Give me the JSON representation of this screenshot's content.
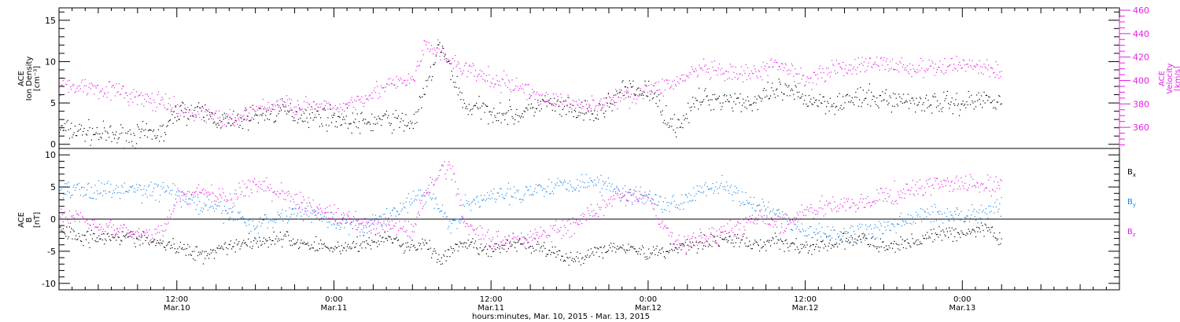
{
  "colors": {
    "axis": "#000000",
    "density": "#000000",
    "velocity": "#e61ee6",
    "bx": "#000000",
    "by": "#1e88e5",
    "bz": "#e61ee6"
  },
  "x_axis": {
    "label": "hours:minutes, Mar. 10, 2015 - Mar. 13, 2015",
    "ticks": [
      {
        "time": "12:00",
        "date": "Mar.10",
        "hours": 12
      },
      {
        "time": "0:00",
        "date": "Mar.11",
        "hours": 24
      },
      {
        "time": "12:00",
        "date": "Mar.11",
        "hours": 36
      },
      {
        "time": "0:00",
        "date": "Mar.12",
        "hours": 48
      },
      {
        "time": "12:00",
        "date": "Mar.12",
        "hours": 60
      },
      {
        "time": "0:00",
        "date": "Mar.13",
        "hours": 72
      }
    ]
  },
  "panel_top": {
    "ylabel_left": [
      "ACE",
      "Ion Density",
      "[cm⁻³]"
    ],
    "ylabel_right": [
      "ACE",
      "Velocity",
      "[km/s]"
    ],
    "left_ticks": [
      "0",
      "5",
      "10",
      "15"
    ],
    "right_ticks": [
      "360",
      "380",
      "400",
      "420",
      "440",
      "460"
    ]
  },
  "panel_bottom": {
    "ylabel_left": [
      "ACE",
      "B",
      "[nT]"
    ],
    "ticks": [
      "-10",
      "-5",
      "0",
      "5",
      "10"
    ],
    "legend": [
      {
        "text": "B",
        "sub": "x",
        "key": "bx"
      },
      {
        "text": "B",
        "sub": "y",
        "key": "by"
      },
      {
        "text": "B",
        "sub": "z",
        "key": "bz"
      }
    ]
  },
  "chart_data": [
    {
      "type": "scatter",
      "title": "",
      "xlabel": "hours:minutes, Mar. 10, 2015 - Mar. 13, 2015",
      "xlim_hours": [
        3.0,
        84.0
      ],
      "ylim_left": [
        -0.5,
        16.5
      ],
      "ylim_right": [
        342,
        462
      ],
      "series": [
        {
          "name": "Ion Density",
          "axis": "left",
          "unit": "cm^-3",
          "x": [
            3,
            5,
            7,
            9,
            11,
            12,
            14,
            16,
            18,
            20,
            22,
            24,
            26,
            28,
            30,
            31,
            32,
            33,
            34,
            36,
            38,
            40,
            42,
            44,
            46,
            48,
            50,
            52,
            54,
            56,
            58,
            60,
            62,
            64,
            66,
            68,
            70,
            72,
            74,
            75
          ],
          "y": [
            1.8,
            1.5,
            1.0,
            1.1,
            1.4,
            4.0,
            3.8,
            2.5,
            3.5,
            4.0,
            3.5,
            3.2,
            2.5,
            3.0,
            2.5,
            6.5,
            12.0,
            8.5,
            4.5,
            4.0,
            3.5,
            5.0,
            4.0,
            3.5,
            6.5,
            6.5,
            2.0,
            5.5,
            5.5,
            5.0,
            6.5,
            5.5,
            5.0,
            5.5,
            5.5,
            5.2,
            5.0,
            5.0,
            5.5,
            5.5
          ]
        },
        {
          "name": "Velocity",
          "axis": "right",
          "unit": "km/s",
          "x": [
            3,
            5,
            7,
            9,
            11,
            12,
            14,
            16,
            18,
            20,
            22,
            24,
            26,
            28,
            30,
            31,
            32,
            33,
            34,
            36,
            38,
            40,
            42,
            44,
            46,
            48,
            50,
            52,
            54,
            56,
            58,
            60,
            62,
            64,
            66,
            68,
            70,
            72,
            74,
            75
          ],
          "y": [
            395,
            395,
            392,
            385,
            380,
            375,
            372,
            365,
            375,
            380,
            378,
            375,
            385,
            395,
            400,
            430,
            425,
            415,
            410,
            400,
            395,
            385,
            380,
            380,
            385,
            392,
            398,
            410,
            405,
            405,
            415,
            400,
            410,
            412,
            415,
            410,
            410,
            415,
            410,
            405
          ]
        }
      ]
    },
    {
      "type": "scatter",
      "title": "",
      "xlabel": "hours:minutes, Mar. 10, 2015 - Mar. 13, 2015",
      "ylabel": "B [nT]",
      "xlim_hours": [
        3.0,
        84.0
      ],
      "ylim": [
        -11,
        11
      ],
      "series": [
        {
          "name": "Bx",
          "x": [
            3,
            5,
            7,
            9,
            11,
            12,
            14,
            16,
            18,
            20,
            22,
            24,
            26,
            28,
            30,
            31,
            32,
            33,
            34,
            36,
            38,
            40,
            42,
            44,
            46,
            48,
            50,
            52,
            54,
            56,
            58,
            60,
            62,
            64,
            66,
            68,
            70,
            72,
            74,
            75
          ],
          "y": [
            -1.5,
            -3.0,
            -2.5,
            -3.0,
            -4.0,
            -4.5,
            -5.5,
            -4.0,
            -3.5,
            -3.0,
            -4.0,
            -4.5,
            -4.0,
            -3.0,
            -4.5,
            -3.5,
            -6.5,
            -5.0,
            -4.0,
            -5.0,
            -3.5,
            -4.5,
            -6.5,
            -5.0,
            -4.0,
            -5.5,
            -4.5,
            -3.5,
            -3.0,
            -4.0,
            -3.5,
            -4.5,
            -4.0,
            -3.0,
            -4.5,
            -3.5,
            -2.5,
            -2.0,
            -1.5,
            -3.5
          ]
        },
        {
          "name": "By",
          "x": [
            3,
            5,
            7,
            9,
            11,
            12,
            14,
            16,
            18,
            20,
            22,
            24,
            26,
            28,
            30,
            31,
            32,
            33,
            34,
            36,
            38,
            40,
            42,
            44,
            46,
            48,
            50,
            52,
            54,
            56,
            58,
            60,
            62,
            64,
            66,
            68,
            70,
            72,
            74,
            75
          ],
          "y": [
            4.5,
            4.5,
            4.5,
            4.5,
            4.5,
            4.0,
            2.0,
            1.0,
            -1.0,
            0.5,
            1.5,
            -0.5,
            -1.5,
            0.5,
            3.0,
            4.0,
            2.0,
            -1.0,
            2.0,
            3.5,
            4.0,
            5.0,
            5.5,
            6.0,
            4.0,
            3.5,
            2.0,
            5.0,
            5.0,
            2.0,
            0.5,
            -2.0,
            -2.5,
            -2.0,
            -1.5,
            0.0,
            1.0,
            0.5,
            1.5,
            2.0
          ]
        },
        {
          "name": "Bz",
          "x": [
            3,
            5,
            7,
            9,
            11,
            12,
            14,
            16,
            18,
            20,
            22,
            24,
            26,
            28,
            30,
            31,
            32,
            33,
            34,
            36,
            38,
            40,
            42,
            44,
            46,
            48,
            50,
            52,
            54,
            56,
            58,
            60,
            62,
            64,
            66,
            68,
            70,
            72,
            74,
            75
          ],
          "y": [
            0.5,
            0.0,
            -1.5,
            -2.5,
            -2.0,
            3.0,
            4.5,
            3.0,
            5.5,
            4.0,
            2.0,
            0.5,
            -0.5,
            -1.0,
            -2.0,
            4.0,
            7.5,
            8.0,
            -1.0,
            -3.0,
            -3.5,
            -2.0,
            -1.5,
            1.5,
            4.0,
            3.0,
            -4.0,
            -3.0,
            -2.0,
            0.0,
            -1.0,
            1.0,
            2.5,
            2.0,
            3.5,
            4.5,
            5.5,
            5.5,
            5.0,
            5.5
          ]
        }
      ]
    }
  ]
}
